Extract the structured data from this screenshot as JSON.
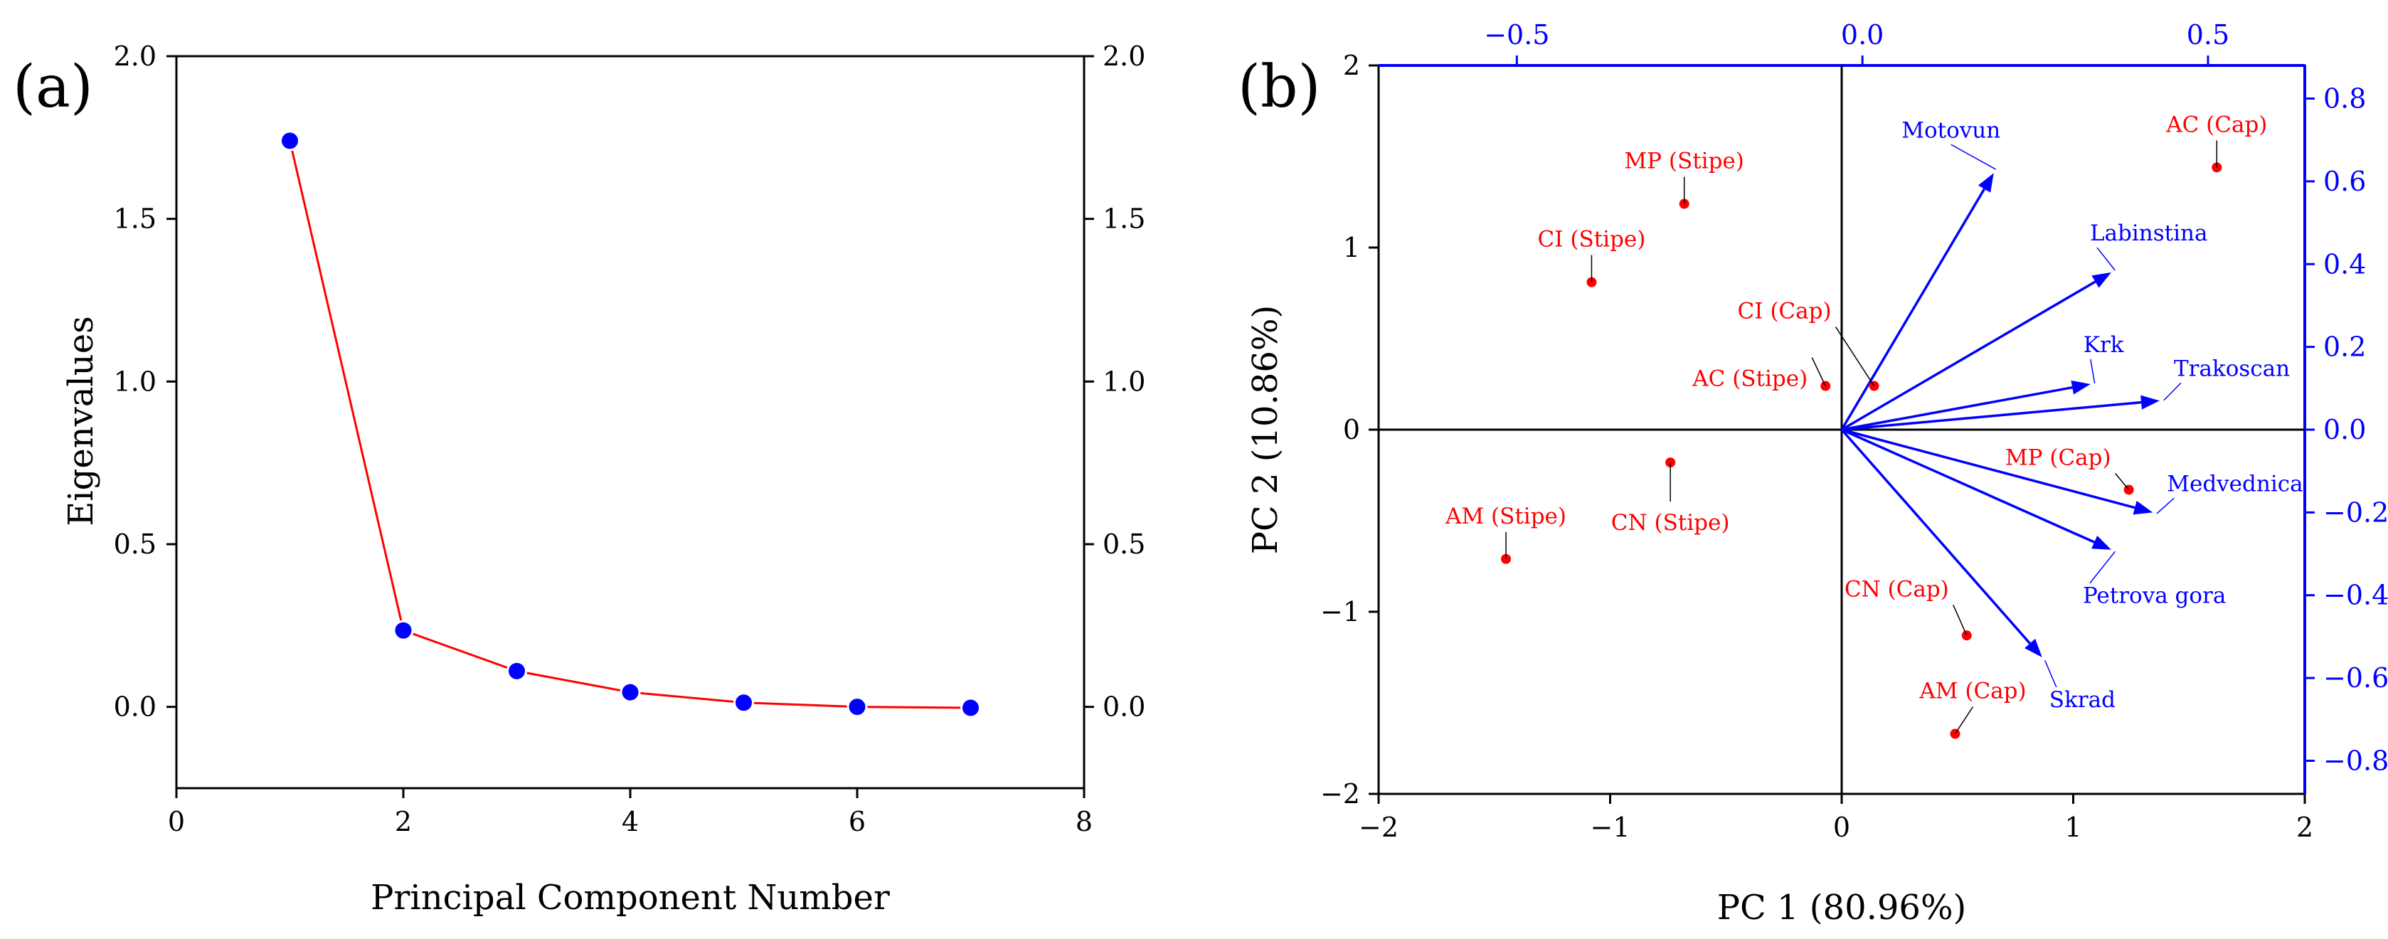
{
  "colors": {
    "axis": "#000000",
    "red": "#ff0000",
    "blue": "#0000ff",
    "marker_blue": "#0000ff"
  },
  "chart_data": [
    {
      "panel": "(a)",
      "type": "line",
      "title": "",
      "xlabel": "Principal Component Number",
      "ylabel": "Eigenvalues",
      "xlim": [
        0,
        8
      ],
      "ylim": [
        -0.25,
        2.0
      ],
      "xticks": [
        0,
        2,
        4,
        6,
        8
      ],
      "xtick_labels": [
        "0",
        "2",
        "4",
        "6",
        "8"
      ],
      "yticks": [
        0.0,
        0.5,
        1.0,
        1.5,
        2.0
      ],
      "ytick_labels": [
        "0.0",
        "0.5",
        "1.0",
        "1.5",
        "2.0"
      ],
      "right_ytick_labels": [
        "0.0",
        "0.5",
        "1.0",
        "1.5",
        "2.0"
      ],
      "series": [
        {
          "name": "Eigenvalues",
          "x": [
            1,
            2,
            3,
            4,
            5,
            6,
            7
          ],
          "values": [
            1.74,
            0.235,
            0.11,
            0.045,
            0.013,
            0.0,
            -0.003
          ]
        }
      ]
    },
    {
      "panel": "(b)",
      "type": "scatter",
      "title": "",
      "xlabel": "PC 1 (80.96%)",
      "ylabel": "PC 2 (10.86%)",
      "xlim": [
        -2,
        2
      ],
      "ylim": [
        -2,
        2
      ],
      "xticks": [
        -2,
        -1,
        0,
        1,
        2
      ],
      "xtick_labels": [
        "−2",
        "−1",
        "0",
        "1",
        "2"
      ],
      "yticks": [
        -2,
        -1,
        0,
        1,
        2
      ],
      "ytick_labels": [
        "−2",
        "−1",
        "0",
        "1",
        "2"
      ],
      "top_xlim": [
        -0.7,
        0.64
      ],
      "top_xticks": [
        -0.5,
        0.0,
        0.5
      ],
      "top_xtick_labels": [
        "−0.5",
        "0.0",
        "0.5"
      ],
      "right_ylim": [
        -0.88,
        0.88
      ],
      "right_yticks": [
        0.8,
        0.6,
        0.4,
        0.2,
        0.0,
        -0.2,
        -0.4,
        -0.6,
        -0.8
      ],
      "right_ytick_labels": [
        "0.8",
        "0.6",
        "0.4",
        "0.2",
        "0.0",
        "−0.2",
        "−0.4",
        "−0.6",
        "−0.8"
      ],
      "scores": [
        {
          "name": "AC (Cap)",
          "x": 1.62,
          "y": 1.44
        },
        {
          "name": "MP (Stipe)",
          "x": -0.68,
          "y": 1.24
        },
        {
          "name": "CI (Stipe)",
          "x": -1.08,
          "y": 0.81
        },
        {
          "name": "CI (Cap)",
          "x": 0.14,
          "y": 0.24
        },
        {
          "name": "AC (Stipe)",
          "x": -0.07,
          "y": 0.24
        },
        {
          "name": "CN (Stipe)",
          "x": -0.74,
          "y": -0.18
        },
        {
          "name": "AM (Stipe)",
          "x": -1.45,
          "y": -0.71
        },
        {
          "name": "MP (Cap)",
          "x": 1.24,
          "y": -0.33
        },
        {
          "name": "CN (Cap)",
          "x": 0.54,
          "y": -1.13
        },
        {
          "name": "AM (Cap)",
          "x": 0.49,
          "y": -1.67
        }
      ],
      "loadings": [
        {
          "name": "Motovun",
          "x": 0.19,
          "y": 0.62
        },
        {
          "name": "Labinstina",
          "x": 0.36,
          "y": 0.38
        },
        {
          "name": "Krk",
          "x": 0.33,
          "y": 0.11
        },
        {
          "name": "Trakoscan",
          "x": 0.43,
          "y": 0.07
        },
        {
          "name": "Medvednica",
          "x": 0.42,
          "y": -0.2
        },
        {
          "name": "Petrova gora",
          "x": 0.36,
          "y": -0.29
        },
        {
          "name": "Skrad",
          "x": 0.26,
          "y": -0.55
        }
      ]
    }
  ]
}
